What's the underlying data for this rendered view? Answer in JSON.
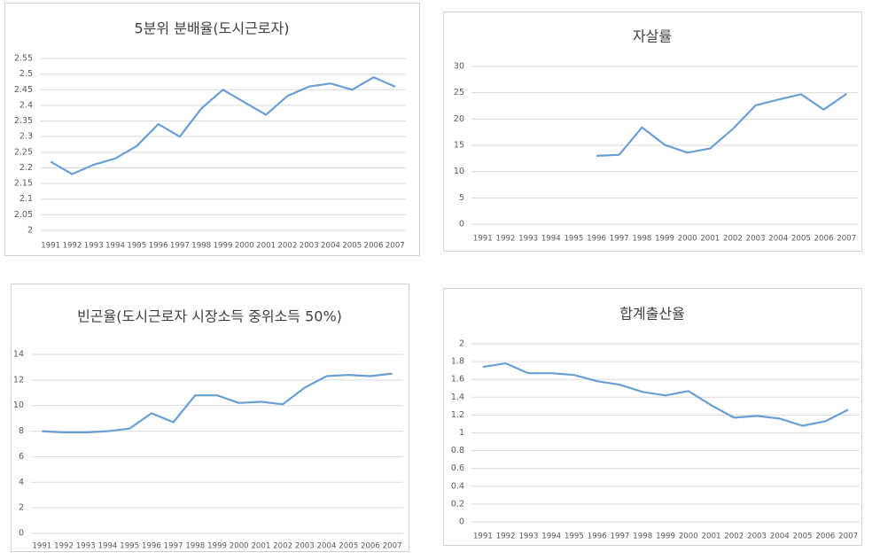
{
  "chart_data": [
    {
      "type": "line",
      "title": "5분위 분배율(도시근로자)",
      "categories": [
        "1991",
        "1992",
        "1993",
        "1994",
        "1995",
        "1996",
        "1997",
        "1998",
        "1999",
        "2000",
        "2001",
        "2002",
        "2003",
        "2004",
        "2005",
        "2006",
        "2007"
      ],
      "values": [
        2.22,
        2.18,
        2.21,
        2.23,
        2.27,
        2.34,
        2.3,
        2.39,
        2.45,
        2.41,
        2.37,
        2.43,
        2.46,
        2.47,
        2.45,
        2.49,
        2.46
      ],
      "color": "#6a9fd4",
      "ylim": [
        2,
        2.55
      ],
      "yticks": [
        2,
        2.05,
        2.1,
        2.15,
        2.2,
        2.25,
        2.3,
        2.35,
        2.4,
        2.45,
        2.5,
        2.55
      ],
      "grid": true
    },
    {
      "type": "line",
      "title": "자살률",
      "categories": [
        "1991",
        "1992",
        "1993",
        "1994",
        "1995",
        "1996",
        "1997",
        "1998",
        "1999",
        "2000",
        "2001",
        "2002",
        "2003",
        "2004",
        "2005",
        "2006",
        "2007"
      ],
      "values": [
        null,
        null,
        null,
        null,
        null,
        13.0,
        13.2,
        18.4,
        15.1,
        13.6,
        14.4,
        18.1,
        22.6,
        23.7,
        24.7,
        21.8,
        24.8
      ],
      "color": "#6a9fd4",
      "ylim": [
        0,
        30
      ],
      "yticks": [
        0,
        5,
        10,
        15,
        20,
        25,
        30
      ],
      "grid": true
    },
    {
      "type": "line",
      "title": "빈곤율(도시근로자 시장소득 중위소득 50%)",
      "categories": [
        "1991",
        "1992",
        "1993",
        "1994",
        "1995",
        "1996",
        "1997",
        "1998",
        "1999",
        "2000",
        "2001",
        "2002",
        "2003",
        "2004",
        "2005",
        "2006",
        "2007"
      ],
      "values": [
        8.0,
        7.9,
        7.9,
        8.0,
        8.2,
        9.4,
        8.7,
        10.8,
        10.8,
        10.2,
        10.3,
        10.1,
        11.4,
        12.3,
        12.4,
        12.3,
        12.5
      ],
      "color": "#6a9fd4",
      "ylim": [
        0,
        14
      ],
      "yticks": [
        0,
        2,
        4,
        6,
        8,
        10,
        12,
        14
      ],
      "grid": true
    },
    {
      "type": "line",
      "title": "합계출산율",
      "categories": [
        "1991",
        "1992",
        "1993",
        "1994",
        "1995",
        "1996",
        "1997",
        "1998",
        "1999",
        "2000",
        "2001",
        "2002",
        "2003",
        "2004",
        "2005",
        "2006",
        "2007"
      ],
      "values": [
        1.74,
        1.78,
        1.67,
        1.67,
        1.65,
        1.58,
        1.54,
        1.46,
        1.42,
        1.47,
        1.31,
        1.17,
        1.19,
        1.16,
        1.08,
        1.13,
        1.26
      ],
      "color": "#6a9fd4",
      "ylim": [
        0,
        2
      ],
      "yticks": [
        0,
        0.2,
        0.4,
        0.6,
        0.8,
        1,
        1.2,
        1.4,
        1.6,
        1.8,
        2
      ],
      "grid": true
    }
  ]
}
